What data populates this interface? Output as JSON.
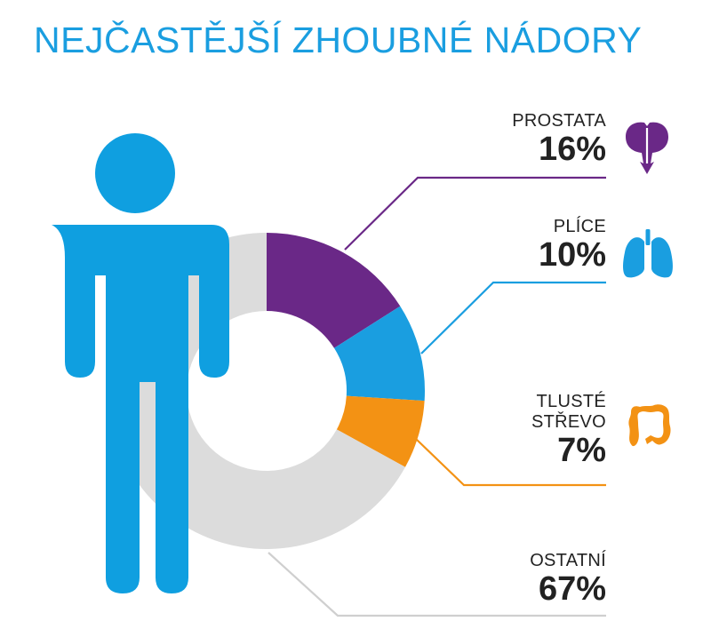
{
  "title": "NEJČASTĚJŠÍ ZHOUBNÉ NÁDORY",
  "colors": {
    "title": "#1a9ee0",
    "person": "#0f9fe0",
    "prostate": "#6a2887",
    "lung": "#1a9ee0",
    "colon": "#f39214",
    "other": "#dcdcdc"
  },
  "icons": [
    "person-icon",
    "prostate-icon",
    "lungs-icon",
    "colon-icon"
  ],
  "chart_data": {
    "type": "pie",
    "title": "NEJČASTĚJŠÍ ZHOUBNÉ NÁDORY",
    "labels": [
      "PROSTATA",
      "PLÍCE",
      "TLUSTÉ STŘEVO",
      "OSTATNÍ"
    ],
    "label_lines": [
      [
        "PROSTATA"
      ],
      [
        "PLÍCE"
      ],
      [
        "TLUSTÉ",
        "STŘEVO"
      ],
      [
        "OSTATNÍ"
      ]
    ],
    "values": [
      16,
      10,
      7,
      67
    ],
    "value_labels": [
      "16%",
      "10%",
      "7%",
      "67%"
    ],
    "unit": "%",
    "colors": [
      "#6a2887",
      "#1a9ee0",
      "#f39214",
      "#dcdcdc"
    ]
  }
}
